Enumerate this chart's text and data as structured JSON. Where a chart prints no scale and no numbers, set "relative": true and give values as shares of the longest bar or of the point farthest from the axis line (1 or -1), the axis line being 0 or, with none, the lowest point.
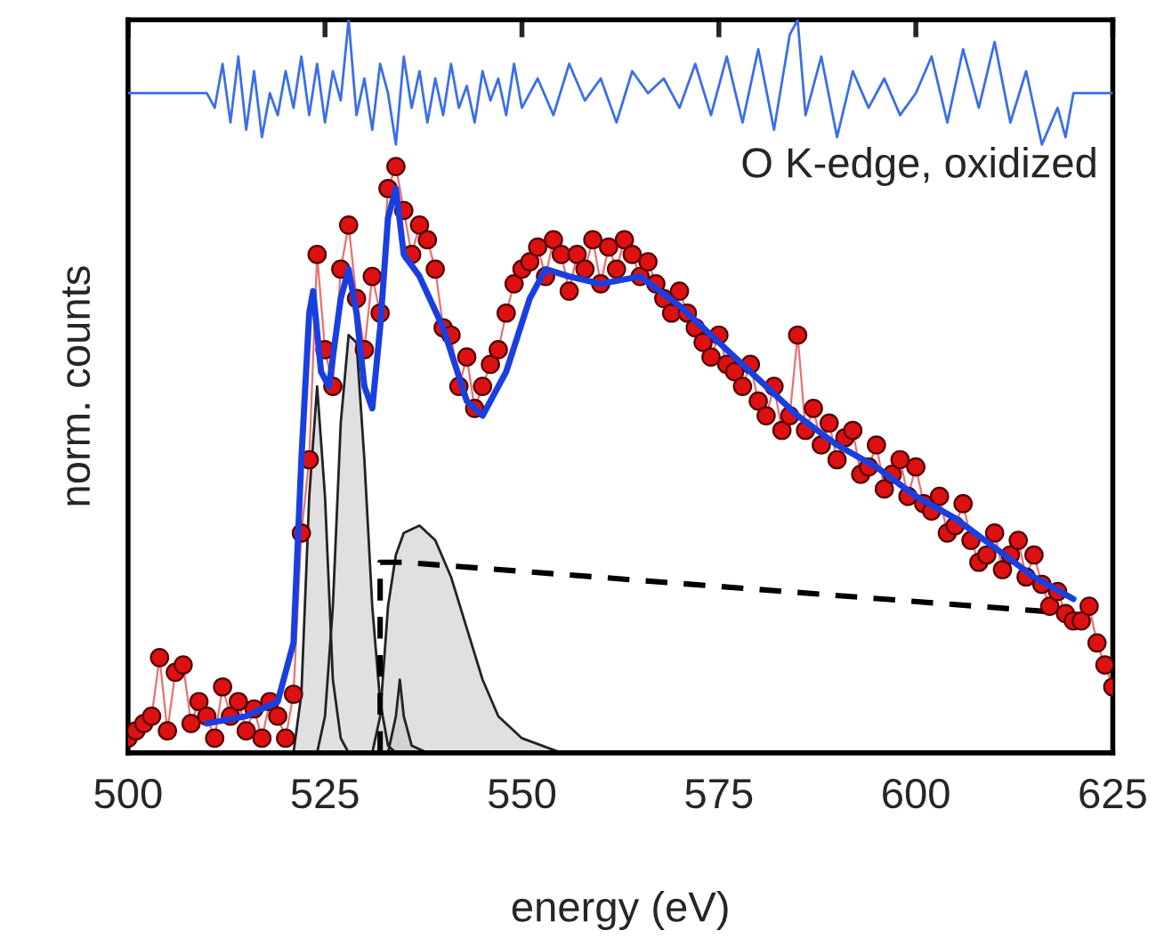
{
  "chart_data": {
    "type": "line",
    "relative": true,
    "xlabel": "energy (eV)",
    "ylabel": "norm. counts",
    "xlim": [
      500,
      625
    ],
    "xticks": [
      500,
      525,
      550,
      575,
      600,
      625
    ],
    "grid": false,
    "legend": false,
    "tick_labels": "x",
    "annotations": [
      "O K-edge, oxidized"
    ],
    "series": [
      {
        "type": "area",
        "color": "#e0e0e0",
        "x": [
          521,
          522,
          523,
          524,
          525,
          526,
          527,
          528
        ],
        "values": [
          0,
          0.08,
          0.35,
          0.5,
          0.35,
          0.1,
          0.02,
          0
        ]
      },
      {
        "type": "area",
        "color": "#e0e0e0",
        "x": [
          524,
          525,
          526,
          527,
          528,
          529,
          530,
          531,
          532,
          533,
          534
        ],
        "values": [
          0,
          0.05,
          0.2,
          0.45,
          0.57,
          0.56,
          0.4,
          0.2,
          0.07,
          0.01,
          0
        ]
      },
      {
        "type": "area",
        "color": "#e0e0e0",
        "x": [
          531,
          532,
          533,
          534,
          535,
          537,
          539,
          541,
          543,
          545,
          547,
          550,
          555
        ],
        "values": [
          0,
          0.05,
          0.2,
          0.27,
          0.3,
          0.31,
          0.29,
          0.24,
          0.17,
          0.1,
          0.05,
          0.02,
          0
        ]
      },
      {
        "type": "area",
        "color": "#d2d2d2",
        "x": [
          533,
          534,
          534.5,
          535,
          536,
          538
        ],
        "values": [
          0,
          0.05,
          0.1,
          0.05,
          0.01,
          0
        ]
      },
      {
        "color": "#000000",
        "line_style": "dashed",
        "x": [
          532,
          532,
          535,
          620
        ],
        "values": [
          0,
          0.26,
          0.26,
          0.19
        ]
      },
      {
        "color": "#dd1111",
        "marker": "circle",
        "x": [
          500,
          501,
          502,
          503,
          504,
          505,
          506,
          507,
          508,
          509,
          510,
          511,
          512,
          513,
          514,
          515,
          516,
          517,
          518,
          519,
          520,
          521,
          522,
          523,
          524,
          525,
          526,
          527,
          528,
          529,
          530,
          531,
          532,
          533,
          534,
          535,
          536,
          537,
          538,
          539,
          540,
          541,
          542,
          543,
          544,
          545,
          546,
          547,
          548,
          549,
          550,
          551,
          552,
          553,
          554,
          555,
          556,
          557,
          558,
          559,
          560,
          561,
          562,
          563,
          564,
          565,
          566,
          567,
          568,
          569,
          570,
          571,
          572,
          573,
          574,
          575,
          576,
          577,
          578,
          579,
          580,
          581,
          582,
          583,
          584,
          585,
          586,
          587,
          588,
          589,
          590,
          591,
          592,
          593,
          594,
          595,
          596,
          597,
          598,
          599,
          600,
          601,
          602,
          603,
          604,
          605,
          606,
          607,
          608,
          609,
          610,
          611,
          612,
          613,
          614,
          615,
          616,
          617,
          618,
          619,
          620,
          621,
          622,
          623,
          624,
          625
        ],
        "values": [
          0.02,
          0.03,
          0.04,
          0.05,
          0.13,
          0.03,
          0.11,
          0.12,
          0.04,
          0.07,
          0.05,
          0.02,
          0.09,
          0.05,
          0.07,
          0.03,
          0.06,
          0.02,
          0.07,
          0.05,
          0.02,
          0.08,
          0.3,
          0.4,
          0.68,
          0.55,
          0.5,
          0.66,
          0.72,
          0.62,
          0.55,
          0.65,
          0.6,
          0.77,
          0.8,
          0.74,
          0.68,
          0.72,
          0.7,
          0.66,
          0.58,
          0.57,
          0.5,
          0.54,
          0.47,
          0.5,
          0.53,
          0.55,
          0.6,
          0.64,
          0.66,
          0.67,
          0.69,
          0.65,
          0.7,
          0.68,
          0.63,
          0.68,
          0.66,
          0.7,
          0.64,
          0.69,
          0.66,
          0.7,
          0.68,
          0.65,
          0.67,
          0.64,
          0.62,
          0.6,
          0.63,
          0.6,
          0.58,
          0.56,
          0.54,
          0.57,
          0.53,
          0.52,
          0.5,
          0.53,
          0.48,
          0.46,
          0.5,
          0.44,
          0.46,
          0.57,
          0.44,
          0.47,
          0.42,
          0.45,
          0.4,
          0.43,
          0.44,
          0.38,
          0.39,
          0.42,
          0.36,
          0.38,
          0.4,
          0.35,
          0.39,
          0.34,
          0.33,
          0.35,
          0.3,
          0.31,
          0.34,
          0.29,
          0.26,
          0.27,
          0.3,
          0.25,
          0.27,
          0.29,
          0.24,
          0.27,
          0.23,
          0.2,
          0.22,
          0.19,
          0.18,
          0.18,
          0.2,
          0.15,
          0.12,
          0.09
        ]
      },
      {
        "color": "#1a3fe0",
        "x": [
          510,
          515,
          519,
          521,
          522,
          523,
          523.5,
          524.5,
          525.5,
          527,
          528,
          529,
          530,
          531,
          532,
          533,
          534,
          535,
          537,
          540,
          543,
          545,
          548,
          551,
          553,
          556,
          560,
          565,
          570,
          575,
          580,
          585,
          590,
          595,
          600,
          605,
          610,
          615,
          620
        ],
        "values": [
          0.04,
          0.05,
          0.07,
          0.15,
          0.4,
          0.6,
          0.63,
          0.52,
          0.5,
          0.62,
          0.66,
          0.6,
          0.5,
          0.47,
          0.58,
          0.73,
          0.77,
          0.68,
          0.65,
          0.58,
          0.48,
          0.46,
          0.52,
          0.62,
          0.66,
          0.65,
          0.64,
          0.65,
          0.61,
          0.56,
          0.51,
          0.46,
          0.42,
          0.39,
          0.35,
          0.32,
          0.28,
          0.24,
          0.21
        ]
      },
      {
        "color": "#3a6fe8",
        "x": [
          500,
          510,
          511,
          512,
          513,
          514,
          515,
          516,
          517,
          518,
          519,
          520,
          521,
          522,
          523,
          524,
          525,
          526,
          527,
          528,
          529,
          530,
          531,
          532,
          533,
          534,
          535,
          536,
          537,
          538,
          539,
          540,
          541,
          542,
          543,
          544,
          545,
          546,
          547,
          548,
          549,
          550,
          552,
          554,
          556,
          558,
          560,
          562,
          564,
          566,
          568,
          570,
          572,
          574,
          576,
          578,
          580,
          582,
          584,
          585,
          586,
          588,
          590,
          592,
          594,
          596,
          598,
          600,
          602,
          604,
          606,
          608,
          610,
          612,
          614,
          616,
          618,
          619,
          620,
          625
        ],
        "values": [
          0.9,
          0.9,
          0.88,
          0.94,
          0.86,
          0.95,
          0.85,
          0.93,
          0.84,
          0.9,
          0.87,
          0.93,
          0.88,
          0.95,
          0.87,
          0.94,
          0.86,
          0.93,
          0.89,
          1.0,
          0.87,
          0.92,
          0.85,
          0.94,
          0.9,
          0.83,
          0.95,
          0.88,
          0.93,
          0.86,
          0.92,
          0.87,
          0.94,
          0.88,
          0.91,
          0.86,
          0.93,
          0.89,
          0.92,
          0.87,
          0.94,
          0.88,
          0.92,
          0.87,
          0.94,
          0.89,
          0.92,
          0.86,
          0.93,
          0.9,
          0.92,
          0.88,
          0.94,
          0.87,
          0.95,
          0.86,
          0.96,
          0.85,
          0.98,
          1.0,
          0.87,
          0.95,
          0.84,
          0.93,
          0.88,
          0.92,
          0.87,
          0.9,
          0.95,
          0.86,
          0.96,
          0.88,
          0.97,
          0.86,
          0.93,
          0.83,
          0.88,
          0.84,
          0.9,
          0.9
        ]
      }
    ]
  }
}
